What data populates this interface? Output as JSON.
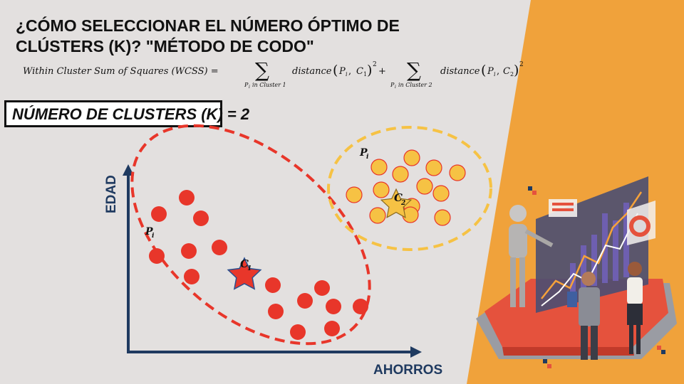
{
  "title": {
    "line1": "¿CÓMO SELECCIONAR EL NÚMERO ÓPTIMO DE",
    "line2": "CLÚSTERS (K)? \"MÉTODO DE CODO\""
  },
  "formula": {
    "lhs": "Within Cluster Sum of Squares (WCSS) =",
    "sigma": "∑",
    "under1": "in Cluster 1",
    "under2": "in Cluster 2",
    "distance": "distance",
    "P": "P",
    "i": "i",
    "C": "C",
    "one": "1",
    "two": "2",
    "plus": "+",
    "exp": "2"
  },
  "cluster_box": {
    "label": "NÚMERO DE CLUSTERS (K) = 2"
  },
  "axes": {
    "y_label": "EDAD",
    "x_label": "AHORROS"
  },
  "points": {
    "label_P": "P",
    "label_sub": "i",
    "centroid1": {
      "C": "C",
      "sub": "1"
    },
    "centroid2": {
      "C": "C",
      "sub": "2"
    }
  },
  "colors": {
    "background": "#e3e0df",
    "accent_orange": "#f0a23b",
    "cluster1": "#e8362a",
    "cluster2": "#f6c244",
    "axis": "#1f3a60"
  }
}
